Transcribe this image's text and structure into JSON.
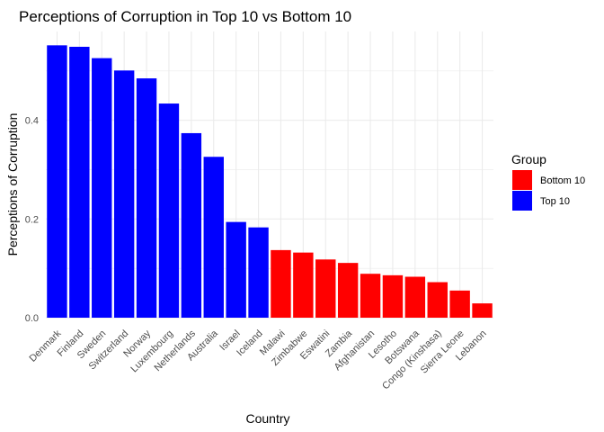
{
  "chart_data": {
    "type": "bar",
    "title": "Perceptions of Corruption in Top 10 vs Bottom 10",
    "xlabel": "Country",
    "ylabel": "Perceptions of Corruption",
    "categories": [
      "Denmark",
      "Finland",
      "Sweden",
      "Switzerland",
      "Norway",
      "Luxembourg",
      "Netherlands",
      "Australia",
      "Israel",
      "Iceland",
      "Malawi",
      "Zimbabwe",
      "Eswatini",
      "Zambia",
      "Afghanistan",
      "Lesotho",
      "Botswana",
      "Congo (Kinshasa)",
      "Sierra Leone",
      "Lebanon"
    ],
    "values": [
      0.552,
      0.549,
      0.526,
      0.501,
      0.485,
      0.434,
      0.374,
      0.326,
      0.194,
      0.183,
      0.137,
      0.132,
      0.118,
      0.111,
      0.089,
      0.086,
      0.083,
      0.072,
      0.055,
      0.029
    ],
    "groups": [
      "Top 10",
      "Top 10",
      "Top 10",
      "Top 10",
      "Top 10",
      "Top 10",
      "Top 10",
      "Top 10",
      "Top 10",
      "Top 10",
      "Bottom 10",
      "Bottom 10",
      "Bottom 10",
      "Bottom 10",
      "Bottom 10",
      "Bottom 10",
      "Bottom 10",
      "Bottom 10",
      "Bottom 10",
      "Bottom 10"
    ],
    "ylim": [
      0,
      0.58
    ],
    "yticks": [
      0.0,
      0.2,
      0.4
    ],
    "ytick_labels": [
      "0.0",
      "0.2",
      "0.4"
    ],
    "grid": true,
    "legend": {
      "title": "Group",
      "position": "right",
      "entries": [
        {
          "label": "Bottom 10",
          "color": "#ff0000"
        },
        {
          "label": "Top 10",
          "color": "#0000ff"
        }
      ]
    },
    "colors": {
      "Top 10": "#0000ff",
      "Bottom 10": "#ff0000",
      "grid": "#ebebeb"
    }
  }
}
